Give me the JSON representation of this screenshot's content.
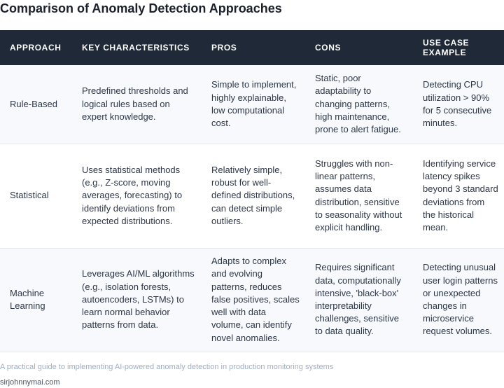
{
  "title": "Comparison of Anomaly Detection Approaches",
  "table": {
    "headers": [
      "APPROACH",
      "KEY CHARACTERISTICS",
      "PROS",
      "CONS",
      "USE CASE EXAMPLE"
    ],
    "rows": [
      {
        "approach": "Rule-Based",
        "characteristics": "Predefined thresholds and logical rules based on expert knowledge.",
        "pros": "Simple to implement, highly explainable, low computational cost.",
        "cons": "Static, poor adaptability to changing patterns, high maintenance, prone to alert fatigue.",
        "use_case": "Detecting CPU utilization > 90% for 5 consecutive minutes."
      },
      {
        "approach": "Statistical",
        "characteristics": "Uses statistical methods (e.g., Z-score, moving averages, forecasting) to identify deviations from expected distributions.",
        "pros": "Relatively simple, robust for well-defined distributions, can detect simple outliers.",
        "cons": "Struggles with non-linear patterns, assumes data distribution, sensitive to seasonality without explicit handling.",
        "use_case": "Identifying service latency spikes beyond 3 standard deviations from the historical mean."
      },
      {
        "approach": "Machine Learning",
        "characteristics": "Leverages AI/ML algorithms (e.g., isolation forests, autoencoders, LSTMs) to learn normal behavior patterns from data.",
        "pros": "Adapts to complex and evolving patterns, reduces false positives, scales well with data volume, can identify novel anomalies.",
        "cons": "Requires significant data, computationally intensive, 'black-box' interpretability challenges, sensitive to data quality.",
        "use_case": "Detecting unusual user login patterns or unexpected changes in microservice request volumes."
      }
    ]
  },
  "caption": "A practical guide to implementing AI-powered anomaly detection in production monitoring systems",
  "source": "sirjohnnymai.com",
  "colors": {
    "header_bg": "#1f2937",
    "header_text": "#ffffff",
    "row_alt_bg": "#f7f9fc",
    "border": "#e2e8f0"
  }
}
